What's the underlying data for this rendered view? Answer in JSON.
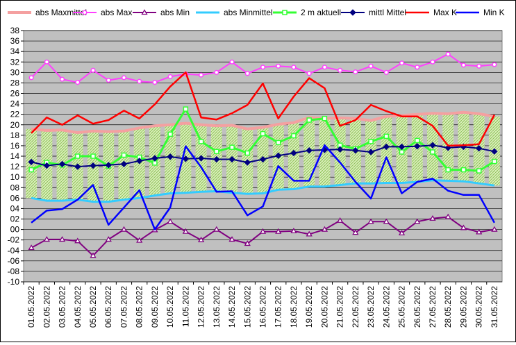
{
  "chart_data": {
    "type": "line",
    "y_ticks": [
      "-10",
      "-08",
      "-06",
      "-04",
      "-02",
      "00",
      "02",
      "04",
      "06",
      "08",
      "10",
      "12",
      "14",
      "16",
      "18",
      "20",
      "22",
      "24",
      "26",
      "28",
      "30",
      "32",
      "34",
      "36",
      "38"
    ],
    "ylim": [
      -10,
      38
    ],
    "grid": true,
    "legend_position": "top",
    "plot_background": "#c0c0c0",
    "categories": [
      "01.05.2022",
      "02.05.2022",
      "03.05.2022",
      "04.05.2022",
      "05.05.2022",
      "06.05.2022",
      "07.05.2022",
      "08.05.2022",
      "09.05.2022",
      "10.05.2022",
      "11.05.2022",
      "12.05.2022",
      "13.05.2022",
      "14.05.2022",
      "15.05.2022",
      "16.05.2022",
      "17.05.2022",
      "18.05.2022",
      "19.05.2022",
      "20.05.2022",
      "21.05.2022",
      "22.05.2022",
      "23.05.2022",
      "24.05.2022",
      "25.05.2022",
      "26.05.2022",
      "27.05.2022",
      "28.05.2022",
      "29.05.2022",
      "30.05.2022",
      "31.05.2022"
    ],
    "band": {
      "fill": "#cde8a8",
      "hatch": "#8fbf5a",
      "upper_series": "abs Maxmittel",
      "lower_series": "abs Minmittel"
    },
    "series": [
      {
        "name": "abs Maxmittel",
        "color": "#f4a0a0",
        "marker": "none",
        "width": 4,
        "values": [
          19.2,
          18.9,
          19.0,
          18.5,
          18.8,
          18.7,
          18.8,
          19.4,
          19.8,
          20.0,
          20.3,
          20.0,
          19.8,
          19.9,
          19.2,
          19.5,
          20.1,
          20.4,
          21.4,
          21.2,
          21.3,
          21.2,
          20.8,
          21.6,
          21.8,
          22.0,
          22.2,
          22.1,
          22.4,
          22.1,
          21.6
        ]
      },
      {
        "name": "abs Max",
        "color": "#ff40ff",
        "marker": "circle-open",
        "width": 2,
        "values": [
          29.0,
          32.0,
          28.7,
          28.1,
          30.4,
          28.5,
          29.0,
          28.3,
          28.1,
          29.2,
          29.7,
          29.5,
          30.0,
          32.0,
          29.8,
          31.0,
          31.2,
          31.0,
          29.8,
          31.0,
          30.4,
          30.1,
          31.2,
          30.0,
          31.8,
          31.0,
          32.0,
          33.5,
          31.4,
          31.2,
          31.5
        ]
      },
      {
        "name": "abs Min",
        "color": "#800080",
        "marker": "triangle-open",
        "width": 2,
        "values": [
          -3.5,
          -1.9,
          -1.9,
          -2.2,
          -5.0,
          -1.9,
          0.0,
          -2.1,
          -0.1,
          1.5,
          -0.4,
          -2.0,
          0.0,
          -1.9,
          -2.7,
          -0.4,
          -0.4,
          -0.3,
          -0.9,
          0.0,
          1.7,
          -0.6,
          1.5,
          1.5,
          -0.7,
          1.5,
          2.1,
          2.4,
          0.3,
          -0.5,
          0.0
        ]
      },
      {
        "name": "abs Minmittel",
        "color": "#33ccff",
        "marker": "none",
        "width": 3,
        "values": [
          6.0,
          5.5,
          5.5,
          5.7,
          5.3,
          5.3,
          5.7,
          6.0,
          6.5,
          6.9,
          7.0,
          7.2,
          7.3,
          7.0,
          6.8,
          6.9,
          7.6,
          7.7,
          8.2,
          8.2,
          8.5,
          8.8,
          8.8,
          8.9,
          8.9,
          9.1,
          9.4,
          9.3,
          9.2,
          8.8,
          8.4
        ]
      },
      {
        "name": "2 m aktuell",
        "color": "#33ff33",
        "marker": "square-open",
        "width": 3,
        "values": [
          11.4,
          12.8,
          12.3,
          14.0,
          14.0,
          12.1,
          14.2,
          13.8,
          12.7,
          18.2,
          23.0,
          16.8,
          14.9,
          15.7,
          14.6,
          18.3,
          16.6,
          17.9,
          20.9,
          21.2,
          16.1,
          15.4,
          16.8,
          17.8,
          14.8,
          17.0,
          14.8,
          11.4,
          11.4,
          11.2,
          13.0
        ]
      },
      {
        "name": "mittl Mittel",
        "color": "#000080",
        "marker": "diamond",
        "width": 2,
        "values": [
          12.9,
          12.2,
          12.5,
          12.0,
          12.2,
          12.3,
          12.5,
          13.1,
          13.6,
          13.9,
          13.5,
          13.6,
          13.4,
          13.4,
          12.8,
          13.4,
          14.1,
          14.6,
          15.1,
          15.2,
          15.3,
          15.1,
          14.8,
          15.8,
          15.8,
          15.9,
          16.1,
          15.6,
          15.8,
          15.5,
          14.9
        ]
      },
      {
        "name": "Max K",
        "color": "#ff0000",
        "marker": "none",
        "width": 2.5,
        "values": [
          18.4,
          21.4,
          20.0,
          21.8,
          20.2,
          20.9,
          22.7,
          21.2,
          23.9,
          27.3,
          30.0,
          21.4,
          21.0,
          22.2,
          23.8,
          27.9,
          21.2,
          25.4,
          28.9,
          27.0,
          19.8,
          20.9,
          23.8,
          22.6,
          21.6,
          21.6,
          19.8,
          16.0,
          16.1,
          16.3,
          21.9
        ]
      },
      {
        "name": "Min K",
        "color": "#0000ff",
        "marker": "none",
        "width": 2.5,
        "values": [
          1.3,
          3.6,
          3.9,
          5.7,
          8.5,
          0.9,
          4.2,
          7.5,
          0.0,
          4.2,
          15.9,
          11.9,
          7.2,
          7.3,
          2.7,
          4.4,
          12.1,
          9.3,
          9.3,
          16.1,
          12.8,
          9.1,
          5.9,
          13.8,
          6.9,
          9.1,
          9.7,
          7.4,
          6.6,
          6.6,
          1.3
        ]
      }
    ]
  }
}
